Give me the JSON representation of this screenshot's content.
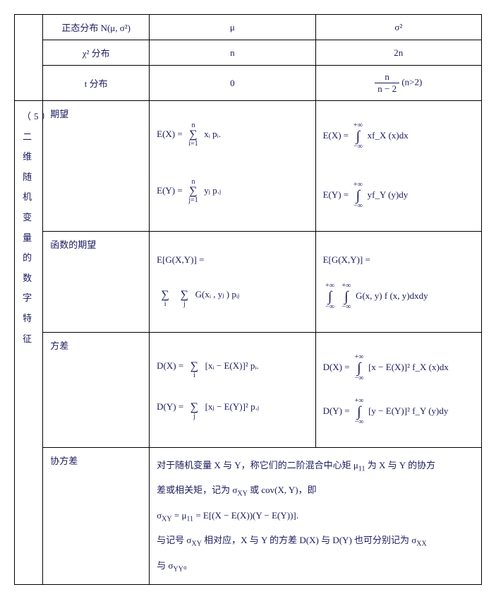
{
  "row_headers": {
    "normal": "正态分布  N(μ, σ²)",
    "chi2": "χ² 分布",
    "tdist": "t 分布"
  },
  "row_vals": {
    "normal_c2": "μ",
    "normal_c3": "σ²",
    "chi2_c2": "n",
    "chi2_c3": "2n",
    "tdist_c2": "0",
    "tdist_frac_num": "n",
    "tdist_frac_den": "n − 2",
    "tdist_cond": "(n>2)"
  },
  "section5": {
    "rowhead": "（5）二维随机变量的数字特征",
    "labels": {
      "expect": "期望",
      "func_expect": "函数的期望",
      "variance": "方差",
      "cov": "协方差"
    },
    "expect_discrete": {
      "EX_lhs": "E(X) =",
      "EX_sum_top": "n",
      "EX_sum_bot": "i=1",
      "EX_rhs": "xᵢ pᵢ.",
      "EY_lhs": "E(Y) =",
      "EY_sum_top": "n",
      "EY_sum_bot": "j=1",
      "EY_rhs": "yⱼ p.ⱼ"
    },
    "expect_cont": {
      "EX_lhs": "E(X) = ",
      "int_top": "+∞",
      "int_bot": "−∞",
      "EX_rhs": "xf_X (x)dx",
      "EY_lhs": "E(Y) = ",
      "EY_rhs": "yf_Y (y)dy"
    },
    "func_expect_discrete": {
      "lhs": "E[G(X,Y)] =",
      "sum1_bot": "i",
      "sum2_bot": "j",
      "rhs": "G(xᵢ , yⱼ ) pᵢⱼ"
    },
    "func_expect_cont": {
      "lhs": "E[G(X,Y)] =",
      "int_top": "+∞",
      "int_bot": "−∞",
      "rhs": "G(x, y) f (x, y)dxdy"
    },
    "variance_discrete": {
      "DX_lhs": "D(X) =",
      "DX_sum_bot": "i",
      "DX_rhs": "[xᵢ − E(X)]² pᵢ.",
      "DY_lhs": "D(Y) =",
      "DY_sum_bot": "j",
      "DY_rhs": "[xⱼ − E(Y)]² p.ⱼ"
    },
    "variance_cont": {
      "int_top": "+∞",
      "int_bot": "−∞",
      "DX_lhs": "D(X) = ",
      "DX_rhs": "[x − E(X)]² f_X (x)dx",
      "DY_lhs": "D(Y) = ",
      "DY_rhs": "[y − E(Y)]² f_Y (y)dy"
    },
    "cov_text": {
      "p1a": "对于随机变量  X 与 Y，称它们的二阶混合中心矩   μ",
      "p1sub": "11",
      "p1b": " 为 X 与 Y 的协方",
      "p2a": "差或相关矩，记为   σ",
      "p2sub": "XY",
      "p2b": " 或 cov(X, Y)，即",
      "p3a": "σ",
      "p3sub1": "XY",
      "p3mid": " = μ",
      "p3sub2": "11",
      "p3b": " = E[(X − E(X))(Y − E(Y))].",
      "p4a": "与记号 σ",
      "p4sub1": "XY",
      "p4b": " 相对应，X 与 Y 的方差  D(X) 与 D(Y) 也可分别记为  σ",
      "p4sub2": "XX",
      "p5a": "与 σ",
      "p5sub": "YY",
      "p5b": "。"
    }
  }
}
